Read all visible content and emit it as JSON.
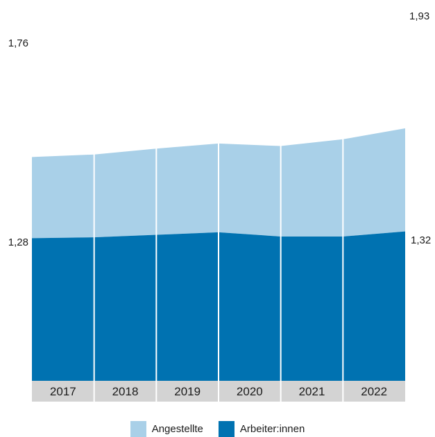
{
  "chart_data": {
    "type": "area",
    "stacked": true,
    "categories": [
      "2017",
      "2018",
      "2019",
      "2020",
      "2021",
      "2022"
    ],
    "series": [
      {
        "name": "Arbeiter:innen",
        "color": "#0072b1",
        "values": [
          1.28,
          1.29,
          1.31,
          1.32,
          1.26,
          1.32
        ]
      },
      {
        "name": "Angestellte",
        "color": "#a9d0e8",
        "values": [
          1.76,
          1.79,
          1.83,
          1.85,
          1.8,
          1.93
        ]
      }
    ],
    "data_labels": {
      "arbeiter_first": "1,28",
      "arbeiter_last": "1,32",
      "angestellte_first": "1,76",
      "angestellte_last": "1,93"
    },
    "axis_color": "#d3d3d3",
    "grid": false,
    "legend_position": "bottom"
  }
}
